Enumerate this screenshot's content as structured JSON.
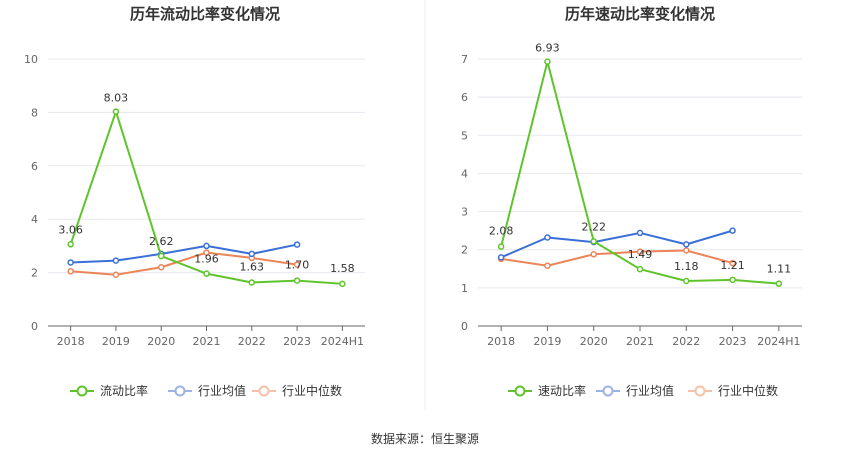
{
  "colors": {
    "series_green": "#5fc42c",
    "series_blue": "#3b6fd8",
    "series_orange": "#ec8458",
    "legend_blue": "#9bb3e6",
    "legend_orange": "#f6c1a8",
    "grid": "#e6e8ee",
    "axis": "#666666",
    "divider": "#ececec"
  },
  "source_label": "数据来源：恒生聚源",
  "chart_data": [
    {
      "type": "line",
      "title": "历年流动比率变化情况",
      "categories": [
        "2018",
        "2019",
        "2020",
        "2021",
        "2022",
        "2023",
        "2024H1"
      ],
      "ylim": [
        0,
        10
      ],
      "yticks": [
        "0",
        "2",
        "4",
        "6",
        "8",
        "10"
      ],
      "ytick_values": [
        0,
        2,
        4,
        6,
        8,
        10
      ],
      "grid": true,
      "legend_position": "bottom",
      "series": [
        {
          "name": "流动比率",
          "color_key": "series_green",
          "values": [
            3.06,
            8.03,
            2.62,
            1.96,
            1.63,
            1.7,
            1.58
          ],
          "labels": [
            "3.06",
            "8.03",
            "2.62",
            "1.96",
            "1.63",
            "1.70",
            "1.58"
          ]
        },
        {
          "name": "行业均值",
          "color_key": "series_blue",
          "values": [
            2.38,
            2.45,
            2.7,
            3.0,
            2.7,
            3.05,
            null
          ]
        },
        {
          "name": "行业中位数",
          "color_key": "series_orange",
          "values": [
            2.05,
            1.92,
            2.2,
            2.75,
            2.55,
            2.3,
            null
          ]
        }
      ]
    },
    {
      "type": "line",
      "title": "历年速动比率变化情况",
      "categories": [
        "2018",
        "2019",
        "2020",
        "2021",
        "2022",
        "2023",
        "2024H1"
      ],
      "ylim": [
        0,
        7
      ],
      "yticks": [
        "0",
        "1",
        "2",
        "3",
        "4",
        "5",
        "6",
        "7"
      ],
      "ytick_values": [
        0,
        1,
        2,
        3,
        4,
        5,
        6,
        7
      ],
      "grid": true,
      "legend_position": "bottom",
      "series": [
        {
          "name": "速动比率",
          "color_key": "series_green",
          "values": [
            2.08,
            6.93,
            2.22,
            1.49,
            1.18,
            1.21,
            1.11
          ],
          "labels": [
            "2.08",
            "6.93",
            "2.22",
            "1.49",
            "1.18",
            "1.21",
            "1.11"
          ]
        },
        {
          "name": "行业均值",
          "color_key": "series_blue",
          "values": [
            1.8,
            2.32,
            2.2,
            2.44,
            2.14,
            2.5,
            null
          ]
        },
        {
          "name": "行业中位数",
          "color_key": "series_orange",
          "values": [
            1.76,
            1.58,
            1.88,
            1.95,
            1.98,
            1.65,
            null
          ]
        }
      ]
    }
  ]
}
